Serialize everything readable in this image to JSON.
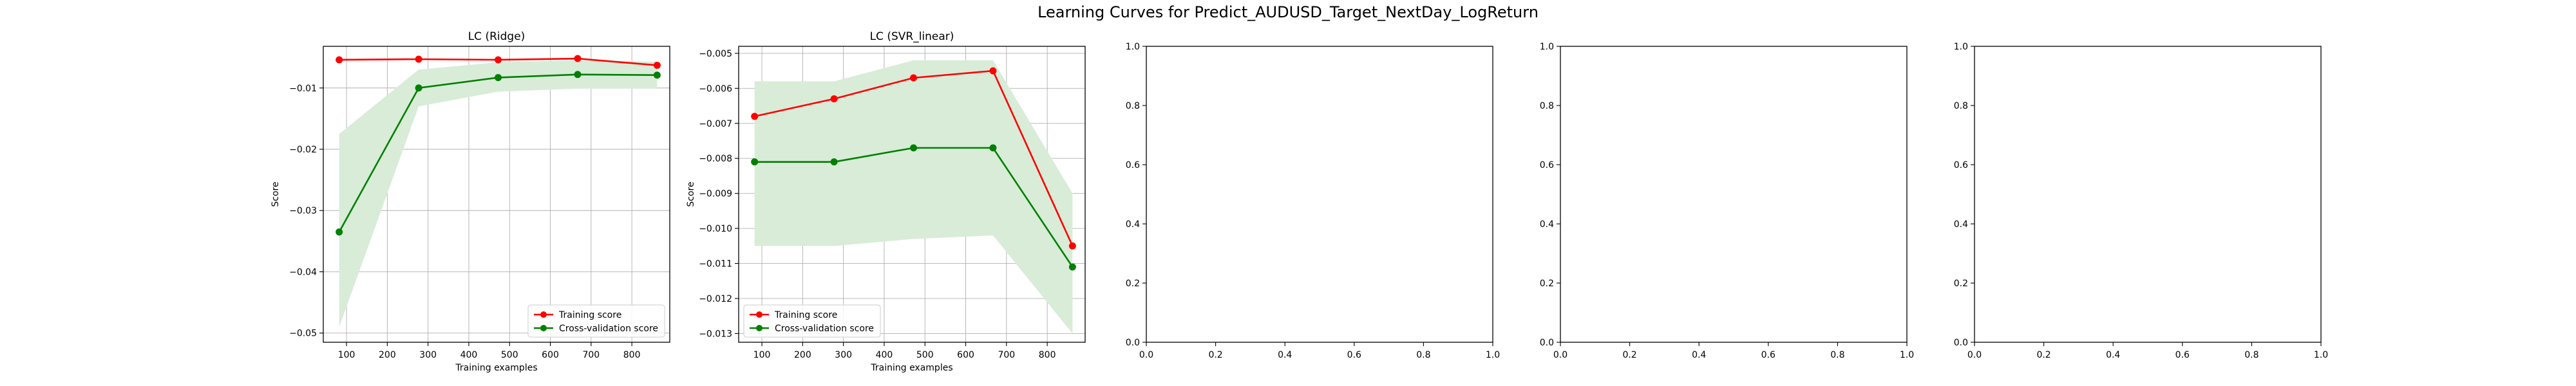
{
  "suptitle": "Learning Curves for Predict_AUDUSD_Target_NextDay_LogReturn",
  "colors": {
    "training": "#ff0000",
    "cv": "#008000",
    "cv_band": "#d8ecd8",
    "grid": "#b0b0b0"
  },
  "chart_data": [
    {
      "type": "line",
      "title": "LC (Ridge)",
      "xlabel": "Training examples",
      "ylabel": "Score",
      "xlim": [
        43,
        893
      ],
      "ylim": [
        -0.0515,
        -0.0032
      ],
      "xticks": [
        100,
        200,
        300,
        400,
        500,
        600,
        700,
        800
      ],
      "xtick_labels": [
        "100",
        "200",
        "300",
        "400",
        "500",
        "600",
        "700",
        "800"
      ],
      "yticks": [
        -0.05,
        -0.04,
        -0.03,
        -0.02,
        -0.01
      ],
      "ytick_labels": [
        "−0.05",
        "−0.04",
        "−0.03",
        "−0.02",
        "−0.01"
      ],
      "grid": true,
      "legend": "lower-right",
      "x": [
        82,
        277,
        472,
        667,
        862
      ],
      "series": [
        {
          "name": "Training score",
          "values": [
            -0.0054,
            -0.0053,
            -0.0054,
            -0.0052,
            -0.0063
          ]
        },
        {
          "name": "Cross-validation score",
          "values": [
            -0.0335,
            -0.01,
            -0.0083,
            -0.0078,
            -0.0079
          ],
          "band_low": [
            -0.049,
            -0.013,
            -0.0106,
            -0.0101,
            -0.0101
          ],
          "band_high": [
            -0.0175,
            -0.007,
            -0.0058,
            -0.0055,
            -0.0057
          ]
        }
      ]
    },
    {
      "type": "line",
      "title": "LC (SVR_linear)",
      "xlabel": "Training examples",
      "ylabel": "Score",
      "xlim": [
        43,
        893
      ],
      "ylim": [
        -0.01325,
        -0.0048
      ],
      "xticks": [
        100,
        200,
        300,
        400,
        500,
        600,
        700,
        800
      ],
      "xtick_labels": [
        "100",
        "200",
        "300",
        "400",
        "500",
        "600",
        "700",
        "800"
      ],
      "yticks": [
        -0.013,
        -0.012,
        -0.011,
        -0.01,
        -0.009,
        -0.008,
        -0.007,
        -0.006,
        -0.005
      ],
      "ytick_labels": [
        "−0.013",
        "−0.012",
        "−0.011",
        "−0.010",
        "−0.009",
        "−0.008",
        "−0.007",
        "−0.006",
        "−0.005"
      ],
      "grid": true,
      "legend": "lower-left",
      "x": [
        82,
        277,
        472,
        667,
        862
      ],
      "series": [
        {
          "name": "Training score",
          "values": [
            -0.0068,
            -0.0063,
            -0.0057,
            -0.0055,
            -0.0105
          ]
        },
        {
          "name": "Cross-validation score",
          "values": [
            -0.0081,
            -0.0081,
            -0.0077,
            -0.0077,
            -0.0111
          ],
          "band_low": [
            -0.0105,
            -0.0105,
            -0.0103,
            -0.0102,
            -0.013
          ],
          "band_high": [
            -0.0058,
            -0.0058,
            -0.0052,
            -0.0052,
            -0.009
          ]
        }
      ]
    },
    {
      "type": "line",
      "empty": true,
      "xlim": [
        0,
        1
      ],
      "ylim": [
        0,
        1
      ],
      "xticks": [
        0,
        0.2,
        0.4,
        0.6,
        0.8,
        1.0
      ],
      "xtick_labels": [
        "0.0",
        "0.2",
        "0.4",
        "0.6",
        "0.8",
        "1.0"
      ],
      "yticks": [
        0,
        0.2,
        0.4,
        0.6,
        0.8,
        1.0
      ],
      "ytick_labels": [
        "0.0",
        "0.2",
        "0.4",
        "0.6",
        "0.8",
        "1.0"
      ],
      "grid": false
    },
    {
      "type": "line",
      "empty": true,
      "xlim": [
        0,
        1
      ],
      "ylim": [
        0,
        1
      ],
      "xticks": [
        0,
        0.2,
        0.4,
        0.6,
        0.8,
        1.0
      ],
      "xtick_labels": [
        "0.0",
        "0.2",
        "0.4",
        "0.6",
        "0.8",
        "1.0"
      ],
      "yticks": [
        0,
        0.2,
        0.4,
        0.6,
        0.8,
        1.0
      ],
      "ytick_labels": [
        "0.0",
        "0.2",
        "0.4",
        "0.6",
        "0.8",
        "1.0"
      ],
      "grid": false
    },
    {
      "type": "line",
      "empty": true,
      "xlim": [
        0,
        1
      ],
      "ylim": [
        0,
        1
      ],
      "xticks": [
        0,
        0.2,
        0.4,
        0.6,
        0.8,
        1.0
      ],
      "xtick_labels": [
        "0.0",
        "0.2",
        "0.4",
        "0.6",
        "0.8",
        "1.0"
      ],
      "yticks": [
        0,
        0.2,
        0.4,
        0.6,
        0.8,
        1.0
      ],
      "ytick_labels": [
        "0.0",
        "0.2",
        "0.4",
        "0.6",
        "0.8",
        "1.0"
      ],
      "grid": false
    }
  ]
}
